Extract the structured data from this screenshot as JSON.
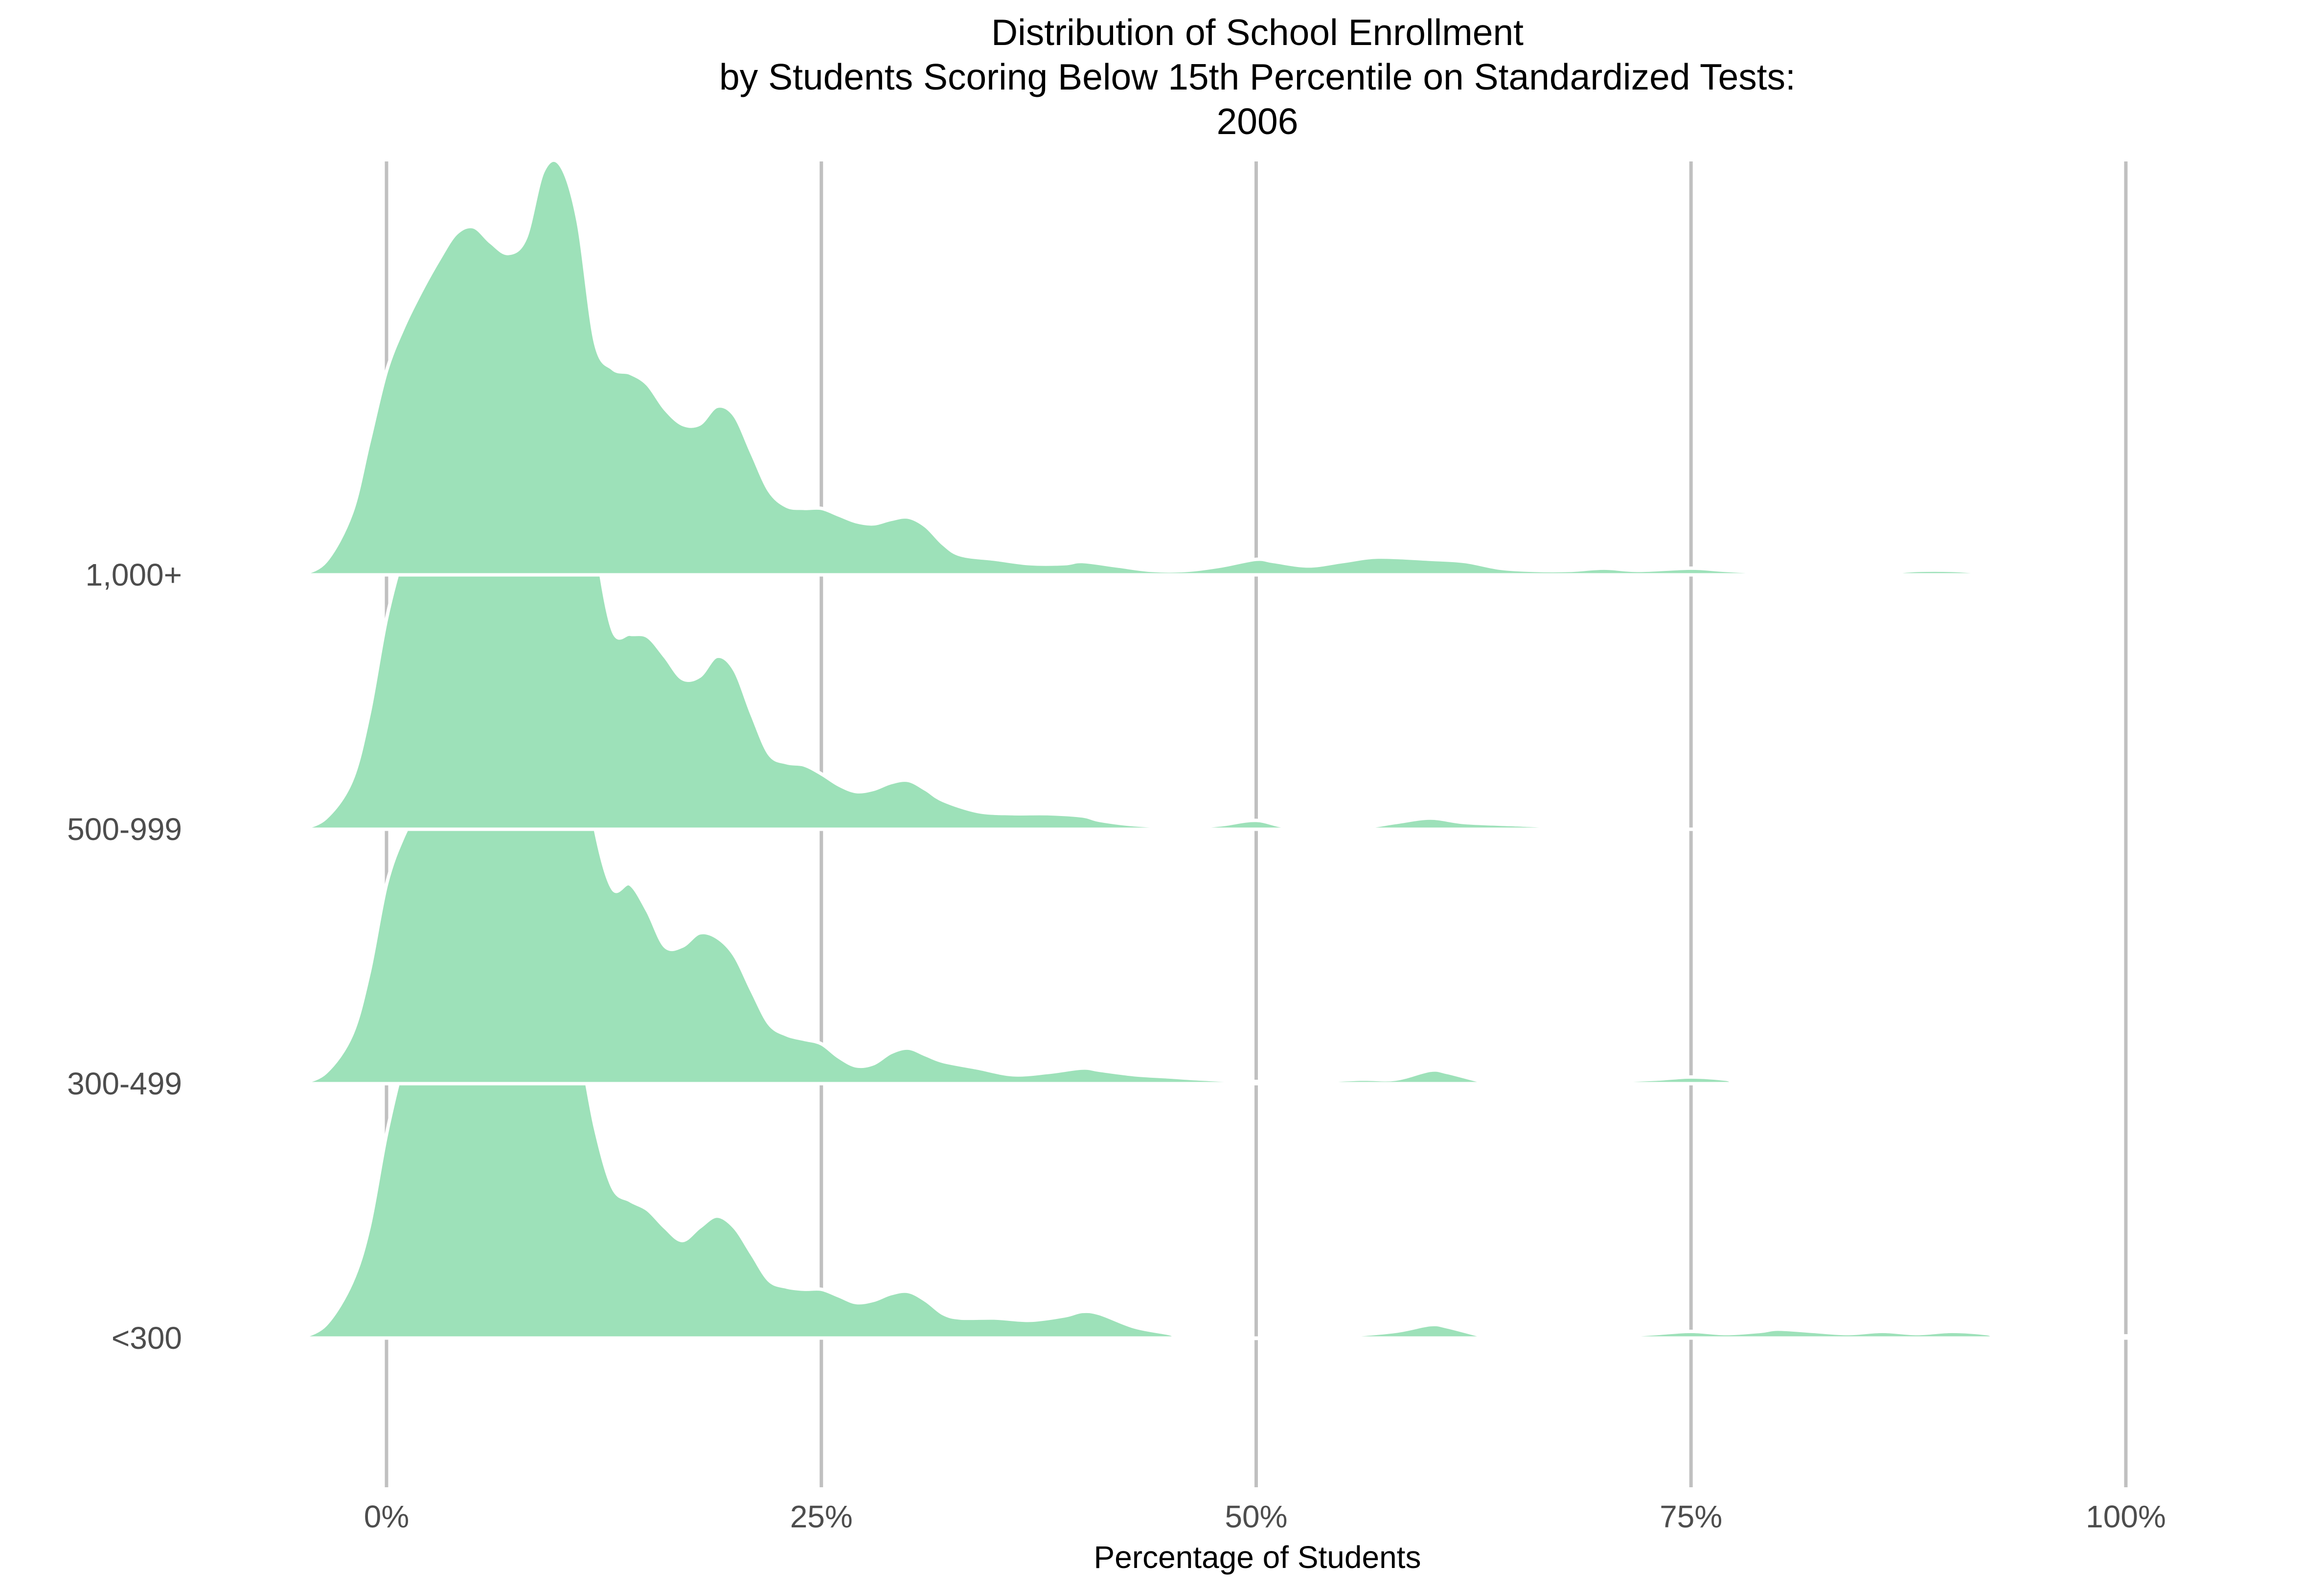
{
  "chart_data": {
    "type": "ridgeline",
    "title": [
      "Distribution of School Enrollment",
      "by Students Scoring Below 15th Percentile on Standardized Tests:",
      "2006"
    ],
    "xlabel": "Percentage of Students",
    "ylabel": "",
    "xlim": [
      -10,
      105
    ],
    "xticks": [
      {
        "value": 0,
        "label": "0%"
      },
      {
        "value": 25,
        "label": "25%"
      },
      {
        "value": 50,
        "label": "50%"
      },
      {
        "value": 75,
        "label": "75%"
      },
      {
        "value": 100,
        "label": "100%"
      }
    ],
    "grid": "vertical",
    "fill_color": "#9de1b9",
    "outline_color": "#ffffff",
    "grid_color": "#c0c0c0",
    "series": [
      {
        "name": "<300",
        "density": [
          [
            -5,
            0
          ],
          [
            -3.5,
            0.06
          ],
          [
            -2,
            0.25
          ],
          [
            -1,
            0.5
          ],
          [
            0,
            0.92
          ],
          [
            1,
            1.25
          ],
          [
            2,
            1.5
          ],
          [
            3,
            1.68
          ],
          [
            4,
            1.82
          ],
          [
            4.5,
            1.86
          ],
          [
            5,
            1.84
          ],
          [
            6,
            1.72
          ],
          [
            7,
            1.52
          ],
          [
            8,
            1.44
          ],
          [
            9,
            1.52
          ],
          [
            10,
            1.54
          ],
          [
            11,
            1.35
          ],
          [
            12,
            0.95
          ],
          [
            13,
            0.68
          ],
          [
            14,
            0.62
          ],
          [
            15,
            0.58
          ],
          [
            16,
            0.5
          ],
          [
            17,
            0.44
          ],
          [
            18,
            0.5
          ],
          [
            19,
            0.55
          ],
          [
            20,
            0.5
          ],
          [
            21,
            0.38
          ],
          [
            22,
            0.26
          ],
          [
            23,
            0.23
          ],
          [
            24,
            0.22
          ],
          [
            25,
            0.22
          ],
          [
            26,
            0.19
          ],
          [
            27,
            0.16
          ],
          [
            28,
            0.17
          ],
          [
            29,
            0.2
          ],
          [
            30,
            0.21
          ],
          [
            31,
            0.17
          ],
          [
            32,
            0.11
          ],
          [
            33,
            0.09
          ],
          [
            35,
            0.09
          ],
          [
            37,
            0.08
          ],
          [
            39,
            0.1
          ],
          [
            40,
            0.12
          ],
          [
            41,
            0.11
          ],
          [
            43,
            0.05
          ],
          [
            45,
            0.02
          ],
          [
            46,
            0
          ],
          [
            52,
            0
          ],
          [
            55,
            0.01
          ],
          [
            58,
            0.03
          ],
          [
            60,
            0.06
          ],
          [
            61,
            0.05
          ],
          [
            63,
            0.01
          ],
          [
            64,
            0
          ],
          [
            69,
            0
          ],
          [
            71,
            0.01
          ],
          [
            73,
            0.02
          ],
          [
            75,
            0.03
          ],
          [
            77,
            0.02
          ],
          [
            79,
            0.03
          ],
          [
            80,
            0.04
          ],
          [
            82,
            0.03
          ],
          [
            84,
            0.02
          ],
          [
            86,
            0.03
          ],
          [
            88,
            0.02
          ],
          [
            90,
            0.03
          ],
          [
            92,
            0.02
          ],
          [
            93,
            0
          ],
          [
            98,
            0
          ],
          [
            100,
            0.01
          ],
          [
            102,
            0
          ]
        ]
      },
      {
        "name": "300-499",
        "density": [
          [
            -5,
            0
          ],
          [
            -3.5,
            0.05
          ],
          [
            -2,
            0.22
          ],
          [
            -1,
            0.5
          ],
          [
            0,
            0.9
          ],
          [
            1,
            1.12
          ],
          [
            2,
            1.26
          ],
          [
            3,
            1.38
          ],
          [
            4,
            1.5
          ],
          [
            5,
            1.58
          ],
          [
            6,
            1.52
          ],
          [
            7,
            1.46
          ],
          [
            8,
            1.5
          ],
          [
            9,
            1.72
          ],
          [
            10,
            1.82
          ],
          [
            11,
            1.65
          ],
          [
            12,
            1.15
          ],
          [
            13,
            0.88
          ],
          [
            14,
            0.9
          ],
          [
            15,
            0.78
          ],
          [
            16,
            0.62
          ],
          [
            17,
            0.62
          ],
          [
            18,
            0.68
          ],
          [
            19,
            0.66
          ],
          [
            20,
            0.58
          ],
          [
            21,
            0.42
          ],
          [
            22,
            0.27
          ],
          [
            23,
            0.22
          ],
          [
            24,
            0.2
          ],
          [
            25,
            0.18
          ],
          [
            26,
            0.12
          ],
          [
            27,
            0.08
          ],
          [
            28,
            0.09
          ],
          [
            29,
            0.14
          ],
          [
            30,
            0.16
          ],
          [
            31,
            0.13
          ],
          [
            32,
            0.1
          ],
          [
            34,
            0.07
          ],
          [
            36,
            0.04
          ],
          [
            38,
            0.05
          ],
          [
            40,
            0.07
          ],
          [
            41,
            0.06
          ],
          [
            43,
            0.04
          ],
          [
            45,
            0.03
          ],
          [
            47,
            0.02
          ],
          [
            50,
            0.01
          ],
          [
            53,
            0.01
          ],
          [
            56,
            0.02
          ],
          [
            58,
            0.02
          ],
          [
            60,
            0.06
          ],
          [
            61,
            0.05
          ],
          [
            63,
            0.01
          ],
          [
            64,
            0
          ],
          [
            68,
            0
          ],
          [
            70,
            0.01
          ],
          [
            73,
            0.02
          ],
          [
            75,
            0.03
          ],
          [
            77,
            0.02
          ],
          [
            78,
            0
          ],
          [
            83,
            0
          ],
          [
            85,
            0.01
          ],
          [
            88,
            0.01
          ],
          [
            90,
            0.01
          ],
          [
            92,
            0.01
          ],
          [
            93,
            0
          ]
        ]
      },
      {
        "name": "500-999",
        "density": [
          [
            -5,
            0
          ],
          [
            -3.5,
            0.05
          ],
          [
            -2,
            0.22
          ],
          [
            -1,
            0.52
          ],
          [
            0,
            0.95
          ],
          [
            1,
            1.25
          ],
          [
            2,
            1.48
          ],
          [
            3,
            1.68
          ],
          [
            4,
            1.9
          ],
          [
            5,
            1.98
          ],
          [
            6,
            1.86
          ],
          [
            7,
            1.68
          ],
          [
            8,
            1.75
          ],
          [
            9,
            2.1
          ],
          [
            10,
            2.25
          ],
          [
            11,
            1.98
          ],
          [
            12,
            1.32
          ],
          [
            13,
            0.9
          ],
          [
            14,
            0.88
          ],
          [
            15,
            0.87
          ],
          [
            16,
            0.78
          ],
          [
            17,
            0.68
          ],
          [
            18,
            0.69
          ],
          [
            19,
            0.78
          ],
          [
            20,
            0.72
          ],
          [
            21,
            0.52
          ],
          [
            22,
            0.34
          ],
          [
            23,
            0.3
          ],
          [
            24,
            0.29
          ],
          [
            25,
            0.25
          ],
          [
            26,
            0.2
          ],
          [
            27,
            0.17
          ],
          [
            28,
            0.18
          ],
          [
            29,
            0.21
          ],
          [
            30,
            0.22
          ],
          [
            31,
            0.18
          ],
          [
            32,
            0.13
          ],
          [
            34,
            0.08
          ],
          [
            36,
            0.07
          ],
          [
            38,
            0.07
          ],
          [
            40,
            0.06
          ],
          [
            41,
            0.04
          ],
          [
            43,
            0.02
          ],
          [
            46,
            0.01
          ],
          [
            48,
            0.02
          ],
          [
            50,
            0.04
          ],
          [
            52,
            0.01
          ],
          [
            56,
            0.01
          ],
          [
            58,
            0.03
          ],
          [
            60,
            0.05
          ],
          [
            62,
            0.03
          ],
          [
            65,
            0.02
          ],
          [
            68,
            0.01
          ],
          [
            70,
            0.01
          ],
          [
            72,
            0.01
          ],
          [
            75,
            0
          ],
          [
            78,
            0.01
          ],
          [
            80,
            0.01
          ],
          [
            83,
            0
          ]
        ]
      },
      {
        "name": "1,000+",
        "density": [
          [
            -5,
            0
          ],
          [
            -3.5,
            0.06
          ],
          [
            -2,
            0.28
          ],
          [
            -1,
            0.6
          ],
          [
            0,
            0.92
          ],
          [
            1,
            1.12
          ],
          [
            2,
            1.28
          ],
          [
            3,
            1.42
          ],
          [
            4,
            1.54
          ],
          [
            5,
            1.57
          ],
          [
            6,
            1.5
          ],
          [
            7,
            1.45
          ],
          [
            8,
            1.52
          ],
          [
            9,
            1.82
          ],
          [
            10,
            1.85
          ],
          [
            11,
            1.6
          ],
          [
            12,
            1.05
          ],
          [
            13,
            0.93
          ],
          [
            14,
            0.91
          ],
          [
            15,
            0.86
          ],
          [
            16,
            0.75
          ],
          [
            17,
            0.68
          ],
          [
            18,
            0.68
          ],
          [
            19,
            0.76
          ],
          [
            20,
            0.72
          ],
          [
            21,
            0.55
          ],
          [
            22,
            0.38
          ],
          [
            23,
            0.31
          ],
          [
            24,
            0.3
          ],
          [
            25,
            0.3
          ],
          [
            26,
            0.27
          ],
          [
            27,
            0.24
          ],
          [
            28,
            0.23
          ],
          [
            29,
            0.25
          ],
          [
            30,
            0.26
          ],
          [
            31,
            0.22
          ],
          [
            32,
            0.14
          ],
          [
            33,
            0.09
          ],
          [
            35,
            0.07
          ],
          [
            37,
            0.05
          ],
          [
            39,
            0.05
          ],
          [
            40,
            0.06
          ],
          [
            42,
            0.04
          ],
          [
            44,
            0.02
          ],
          [
            46,
            0.02
          ],
          [
            48,
            0.04
          ],
          [
            50,
            0.07
          ],
          [
            51,
            0.06
          ],
          [
            53,
            0.04
          ],
          [
            55,
            0.06
          ],
          [
            57,
            0.08
          ],
          [
            60,
            0.07
          ],
          [
            62,
            0.06
          ],
          [
            64,
            0.03
          ],
          [
            66,
            0.02
          ],
          [
            68,
            0.02
          ],
          [
            70,
            0.03
          ],
          [
            72,
            0.02
          ],
          [
            75,
            0.03
          ],
          [
            77,
            0.02
          ],
          [
            80,
            0.01
          ],
          [
            83,
            0.01
          ],
          [
            86,
            0.01
          ],
          [
            88,
            0.02
          ],
          [
            90,
            0.02
          ],
          [
            92,
            0.01
          ],
          [
            93,
            0
          ]
        ]
      }
    ]
  }
}
